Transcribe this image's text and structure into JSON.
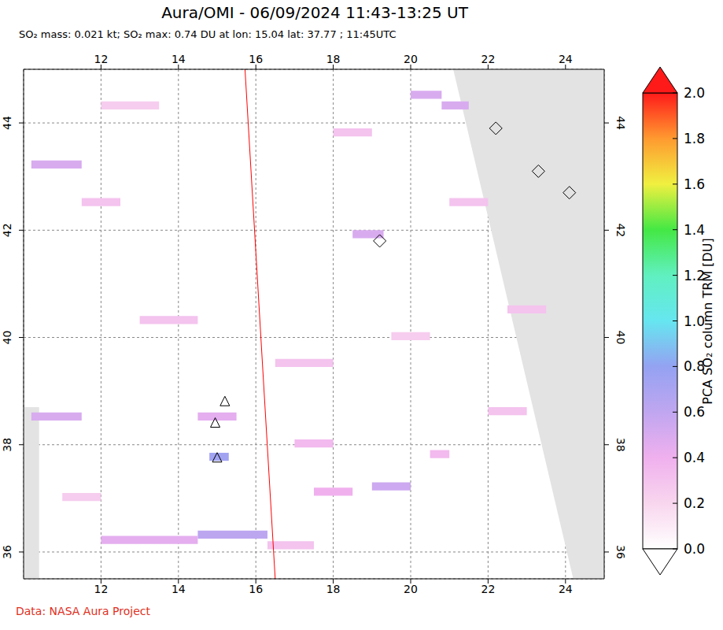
{
  "chart_data": {
    "type": "map",
    "title": "Aura/OMI - 06/09/2024 11:43-13:25 UT",
    "subtitle": "SO₂ mass: 0.021 kt; SO₂ max: 0.74 DU at lon: 15.04 lat: 37.77 ; 11:45UTC",
    "source": "Data: NASA Aura Project",
    "xlim": [
      10,
      25
    ],
    "ylim": [
      35.5,
      45
    ],
    "xticks": [
      12,
      14,
      16,
      18,
      20,
      22,
      24
    ],
    "yticks": [
      36,
      38,
      40,
      42,
      44
    ],
    "grid": true,
    "colorbar": {
      "label": "PCA SO₂ column TRM [DU]",
      "range": [
        0,
        2
      ],
      "ticks": [
        {
          "value": 0,
          "label": "0.0"
        },
        {
          "value": 0.2,
          "label": "0.2"
        },
        {
          "value": 0.4,
          "label": "0.4"
        },
        {
          "value": 0.6,
          "label": "0.6"
        },
        {
          "value": 0.8,
          "label": "0.8"
        },
        {
          "value": 1,
          "label": "1.0"
        },
        {
          "value": 1.2,
          "label": "1.2"
        },
        {
          "value": 1.4,
          "label": "1.4"
        },
        {
          "value": 1.6,
          "label": "1.6"
        },
        {
          "value": 1.8,
          "label": "1.8"
        },
        {
          "value": 2,
          "label": "2.0"
        }
      ],
      "colors": [
        "#ffffff",
        "#f8d6ee",
        "#f0b0ee",
        "#c0a6f0",
        "#94a2f2",
        "#66e6f0",
        "#60f0c0",
        "#44e844",
        "#f0f040",
        "#ff9a30",
        "#ff1a1a"
      ]
    },
    "pixels": [
      {
        "lon": [
          14.5,
          16.3
        ],
        "lat": [
          36.25,
          36.4
        ],
        "value": 0.62
      },
      {
        "lon": [
          12.0,
          14.5
        ],
        "lat": [
          36.15,
          36.3
        ],
        "value": 0.45
      },
      {
        "lon": [
          10.2,
          11.5
        ],
        "lat": [
          38.45,
          38.6
        ],
        "value": 0.5
      },
      {
        "lon": [
          10.2,
          11.5
        ],
        "lat": [
          43.15,
          43.3
        ],
        "value": 0.5
      },
      {
        "lon": [
          17.5,
          18.5
        ],
        "lat": [
          37.05,
          37.2
        ],
        "value": 0.4
      },
      {
        "lon": [
          19.0,
          20.0
        ],
        "lat": [
          37.15,
          37.3
        ],
        "value": 0.55
      },
      {
        "lon": [
          20.0,
          20.8
        ],
        "lat": [
          44.45,
          44.6
        ],
        "value": 0.5
      },
      {
        "lon": [
          20.8,
          21.5
        ],
        "lat": [
          44.25,
          44.4
        ],
        "value": 0.5
      },
      {
        "lon": [
          18.5,
          19.3
        ],
        "lat": [
          41.85,
          42.0
        ],
        "value": 0.5
      },
      {
        "lon": [
          14.8,
          15.3
        ],
        "lat": [
          37.7,
          37.85
        ],
        "value": 0.74
      },
      {
        "lon": [
          13.0,
          14.5
        ],
        "lat": [
          40.25,
          40.4
        ],
        "value": 0.3
      },
      {
        "lon": [
          16.5,
          18.0
        ],
        "lat": [
          39.45,
          39.6
        ],
        "value": 0.3
      },
      {
        "lon": [
          20.5,
          21.0
        ],
        "lat": [
          37.75,
          37.9
        ],
        "value": 0.35
      },
      {
        "lon": [
          22.5,
          23.5
        ],
        "lat": [
          40.45,
          40.6
        ],
        "value": 0.3
      },
      {
        "lon": [
          11.5,
          12.5
        ],
        "lat": [
          42.45,
          42.6
        ],
        "value": 0.3
      },
      {
        "lon": [
          18.0,
          19.0
        ],
        "lat": [
          43.75,
          43.9
        ],
        "value": 0.3
      },
      {
        "lon": [
          17.0,
          18.0
        ],
        "lat": [
          37.95,
          38.1
        ],
        "value": 0.35
      },
      {
        "lon": [
          14.5,
          15.5
        ],
        "lat": [
          38.45,
          38.6
        ],
        "value": 0.45
      },
      {
        "lon": [
          12.0,
          13.5
        ],
        "lat": [
          44.25,
          44.4
        ],
        "value": 0.25
      },
      {
        "lon": [
          19.5,
          20.5
        ],
        "lat": [
          39.95,
          40.1
        ],
        "value": 0.25
      },
      {
        "lon": [
          21.0,
          22.0
        ],
        "lat": [
          42.45,
          42.6
        ],
        "value": 0.3
      },
      {
        "lon": [
          16.3,
          17.5
        ],
        "lat": [
          36.05,
          36.2
        ],
        "value": 0.3
      },
      {
        "lon": [
          11.0,
          12.0
        ],
        "lat": [
          36.95,
          37.1
        ],
        "value": 0.25
      },
      {
        "lon": [
          22.0,
          23.0
        ],
        "lat": [
          38.55,
          38.7
        ],
        "value": 0.3
      }
    ],
    "no_data_areas": [
      {
        "lon": [
          21.1,
          25,
          25,
          24.2
        ],
        "lat": [
          45,
          45,
          35.5,
          35.5
        ]
      },
      {
        "lon": [
          10,
          10.4,
          10.4,
          10
        ],
        "lat": [
          38.7,
          38.7,
          35.5,
          35.5
        ]
      }
    ],
    "orbit_edge": {
      "lon": [
        15.72,
        16.5
      ],
      "lat": [
        45,
        35.5
      ],
      "color": "#ff0000"
    },
    "markers": [
      {
        "lon": 15.2,
        "lat": 38.8,
        "marker": "triangle"
      },
      {
        "lon": 14.95,
        "lat": 38.4,
        "marker": "triangle"
      },
      {
        "lon": 15.0,
        "lat": 37.75,
        "marker": "triangle"
      },
      {
        "lon": 22.2,
        "lat": 43.9,
        "marker": "diamond"
      },
      {
        "lon": 23.3,
        "lat": 43.1,
        "marker": "diamond"
      },
      {
        "lon": 24.1,
        "lat": 42.7,
        "marker": "diamond"
      },
      {
        "lon": 19.2,
        "lat": 41.8,
        "marker": "diamond"
      }
    ]
  }
}
